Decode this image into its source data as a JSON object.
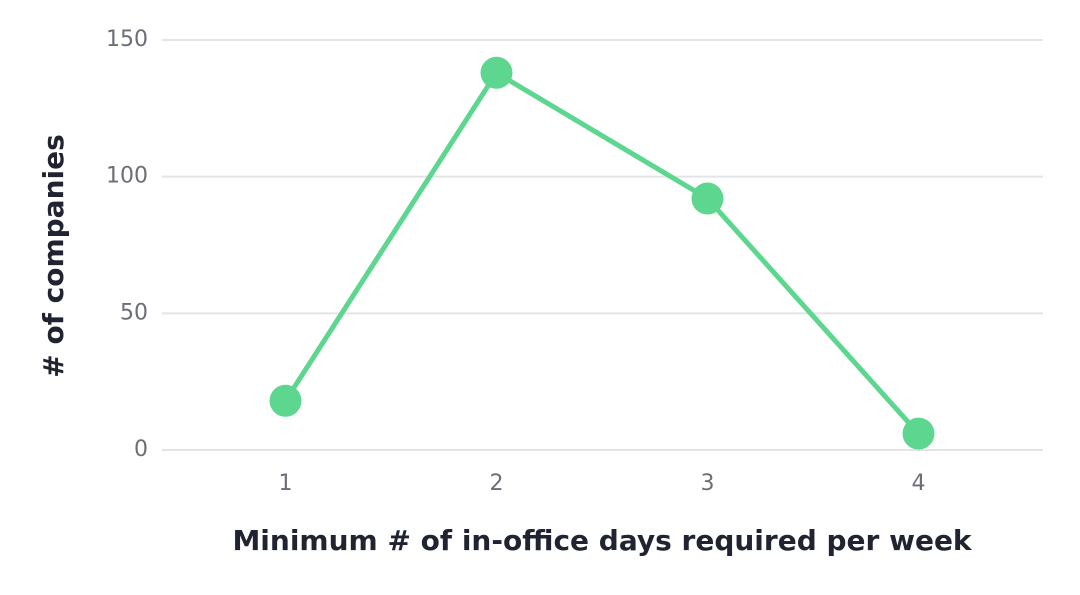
{
  "chart_data": {
    "type": "line",
    "x_label": "Minimum # of in-office days required per week",
    "y_label": "# of companies",
    "categories": [
      "1",
      "2",
      "3",
      "4"
    ],
    "series": [
      {
        "name": "# of companies",
        "color": "#5dd68f",
        "values": [
          18,
          138,
          92,
          6
        ]
      }
    ],
    "ylim": [
      0,
      150
    ],
    "yticks": [
      0,
      50,
      100,
      150
    ],
    "grid": true
  }
}
